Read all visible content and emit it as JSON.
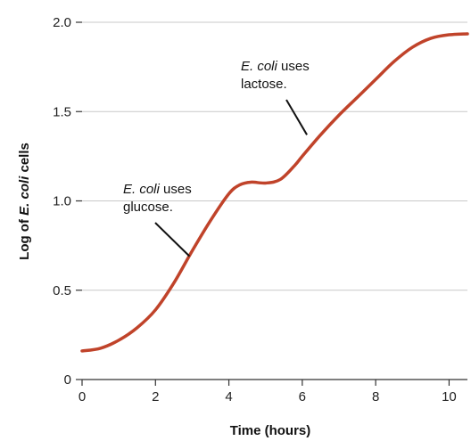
{
  "chart_data": {
    "type": "line",
    "xlabel": "Time (hours)",
    "ylabel": {
      "pre": "Log of ",
      "italic": "E. coli",
      "post": " cells"
    },
    "xlim": [
      0,
      10.5
    ],
    "ylim": [
      0,
      2.0
    ],
    "x_ticks": [
      0,
      2,
      4,
      6,
      8,
      10
    ],
    "x_tick_labels": [
      "0",
      "2",
      "4",
      "6",
      "8",
      "10"
    ],
    "y_ticks": [
      0,
      0.5,
      1.0,
      1.5,
      2.0
    ],
    "y_tick_labels": [
      "0",
      "0.5",
      "1.0",
      "1.5",
      "2.0"
    ],
    "grid": "horizontal",
    "series": [
      {
        "color": "#c0432a",
        "x": [
          0,
          0.5,
          1.0,
          1.5,
          2.0,
          2.5,
          3.0,
          3.5,
          4.0,
          4.3,
          4.6,
          5.0,
          5.4,
          5.8,
          6.0,
          6.5,
          7.0,
          7.5,
          8.0,
          8.5,
          9.0,
          9.5,
          10.0,
          10.5
        ],
        "y": [
          0.16,
          0.175,
          0.22,
          0.29,
          0.39,
          0.54,
          0.72,
          0.89,
          1.04,
          1.09,
          1.105,
          1.1,
          1.12,
          1.2,
          1.25,
          1.37,
          1.48,
          1.58,
          1.68,
          1.78,
          1.86,
          1.91,
          1.93,
          1.935
        ]
      }
    ],
    "annotations": [
      {
        "italic": "E. coli",
        "rest": " uses",
        "line2": "glucose.",
        "point": [
          3.0,
          0.7
        ]
      },
      {
        "italic": "E. coli",
        "rest": " uses",
        "line2": "lactose.",
        "point": [
          6.2,
          1.38
        ]
      }
    ]
  }
}
